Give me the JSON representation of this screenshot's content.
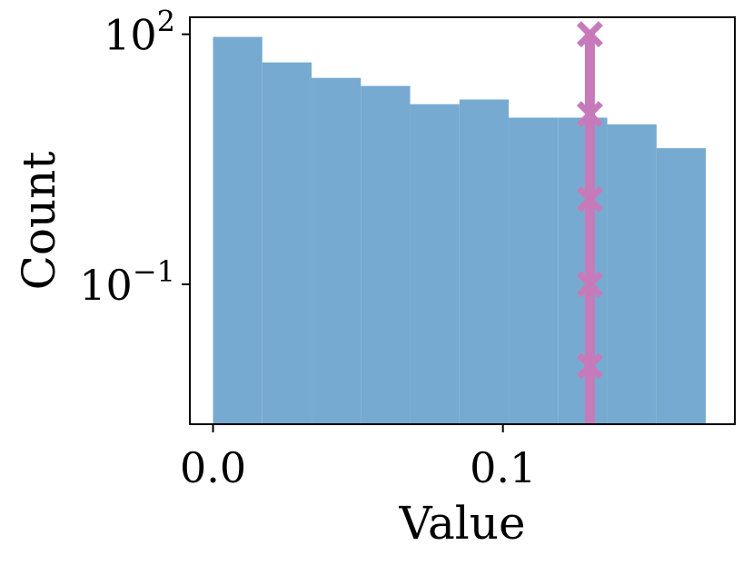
{
  "chart_data": {
    "type": "bar",
    "title": "",
    "xlabel": "Value",
    "ylabel": "Count",
    "y_scale": "log",
    "grid": false,
    "legend": "none",
    "xlim": [
      -0.008,
      0.18
    ],
    "ylim": [
      0.0021,
      160
    ],
    "x_ticks": [
      {
        "value": 0.0,
        "label": "0.0"
      },
      {
        "value": 0.1,
        "label": "0.1"
      }
    ],
    "y_ticks": [
      {
        "value": 100,
        "base": "10",
        "exp": "2"
      },
      {
        "value": 0.1,
        "base": "10",
        "exp": "−1"
      }
    ],
    "bin_edges": [
      0.0,
      0.017,
      0.034,
      0.051,
      0.068,
      0.085,
      0.102,
      0.119,
      0.136,
      0.153,
      0.17
    ],
    "values": [
      93,
      46,
      30,
      24,
      14.5,
      16.5,
      10,
      10,
      8.3,
      4.3
    ],
    "bar_color": "#77aad0",
    "marker_line": {
      "x": 0.13,
      "color": "#c77ab9",
      "marker": "x",
      "marker_y": [
        100,
        11,
        1.05,
        0.1,
        0.0105
      ]
    }
  }
}
